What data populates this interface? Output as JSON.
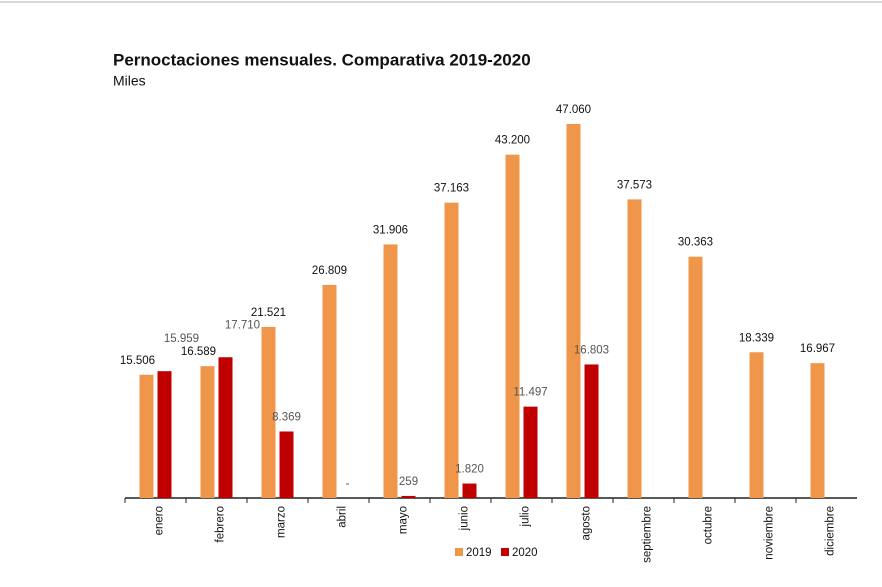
{
  "chart_data": {
    "type": "bar",
    "title": "Pernoctaciones mensuales. Comparativa 2019-2020",
    "subtitle": "Miles",
    "categories": [
      "enero",
      "febrero",
      "marzo",
      "abril",
      "mayo",
      "junio",
      "julio",
      "agosto",
      "septiembre",
      "octubre",
      "noviembre",
      "diciembre"
    ],
    "series": [
      {
        "name": "2019",
        "color": "#f0964b",
        "values": [
          15506,
          16589,
          21521,
          26809,
          31906,
          37163,
          43200,
          47060,
          37573,
          30363,
          18339,
          16967
        ],
        "value_labels": [
          "15.506",
          "16.589",
          "21.521",
          "26.809",
          "31.906",
          "37.163",
          "43.200",
          "47.060",
          "37.573",
          "30.363",
          "18.339",
          "16.967"
        ]
      },
      {
        "name": "2020",
        "color": "#c00000",
        "values": [
          15959,
          17710,
          8369,
          null,
          259,
          1820,
          11497,
          16803,
          null,
          null,
          null,
          null
        ],
        "value_labels": [
          "15.959",
          "17.710",
          "8.369",
          "-",
          "259",
          "1.820",
          "11.497",
          "16.803",
          null,
          null,
          null,
          null
        ]
      }
    ],
    "legend": "bottom"
  }
}
